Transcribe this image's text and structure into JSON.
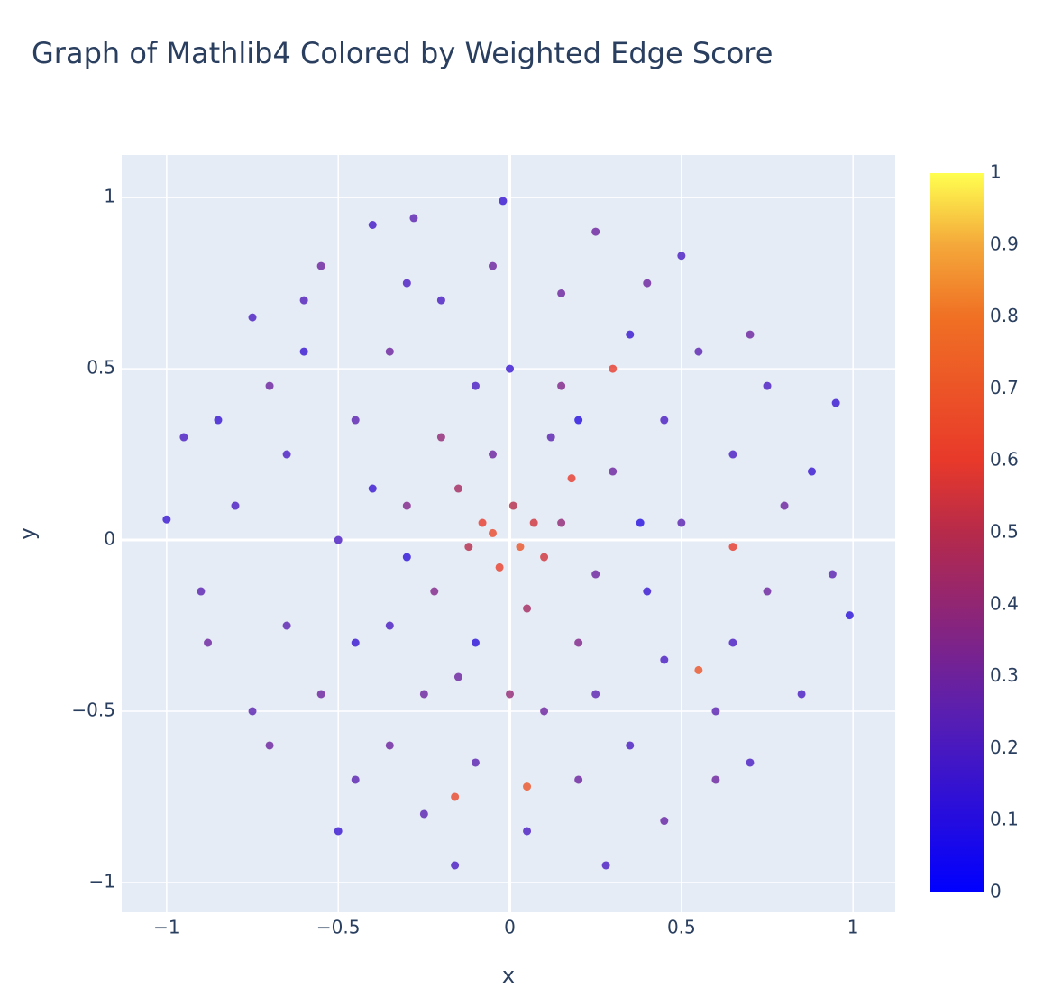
{
  "chart_data": {
    "type": "scatter",
    "title": "Graph of Mathlib4 Colored by Weighted Edge Score",
    "x_label": "x",
    "y_label": "y",
    "xlim": [
      -1.131,
      1.123
    ],
    "ylim": [
      -1.087,
      1.124
    ],
    "xticks": [
      {
        "value": -1,
        "label": "−1"
      },
      {
        "value": -0.5,
        "label": "−0.5"
      },
      0,
      0.5,
      1
    ],
    "yticks": [
      {
        "value": -1,
        "label": "−1"
      },
      {
        "value": -0.5,
        "label": "−0.5"
      },
      0,
      0.5,
      1
    ],
    "grid": true,
    "colorscale": [
      [
        0,
        "#0000ff"
      ],
      [
        0.25,
        "#5a1fb0"
      ],
      [
        0.5,
        "#b62a4a"
      ],
      [
        0.6,
        "#e8392a"
      ],
      [
        0.8,
        "#f07024"
      ],
      [
        0.9,
        "#f4a83a"
      ],
      [
        1,
        "#ffff50"
      ]
    ],
    "clim": [
      0,
      1
    ],
    "cticks": [
      0,
      0.1,
      0.2,
      0.3,
      0.4,
      0.5,
      0.6,
      0.7,
      0.8,
      0.9,
      1
    ],
    "x": [
      -0.02,
      -1.0,
      0.99,
      -0.16,
      0.28,
      -0.4,
      -0.28,
      0.25,
      0.95,
      -0.95,
      0.94,
      -0.88,
      0.85,
      -0.75,
      0.7,
      -0.6,
      0.5,
      -0.55,
      -0.5,
      0.45,
      -0.05,
      0.03,
      -0.08,
      0.07,
      0.01,
      -0.03,
      0.1,
      -0.12,
      0.18,
      0.3,
      0.55,
      -0.16,
      0.05,
      0.65,
      -0.3,
      0.3,
      -0.2,
      0.2,
      -0.35,
      0.4,
      -0.45,
      0.45,
      -0.25,
      0.25,
      -0.1,
      0.1,
      -0.5,
      0.5,
      0.0,
      0.0,
      -0.65,
      0.65,
      -0.65,
      0.65,
      -0.35,
      0.35,
      -0.35,
      0.35,
      -0.8,
      0.8,
      -0.15,
      0.15,
      -0.05,
      0.05,
      -0.22,
      0.25,
      -0.4,
      0.38,
      -0.3,
      0.2,
      -0.1,
      0.12,
      -0.55,
      0.6,
      -0.7,
      0.75,
      -0.2,
      0.15,
      -0.1,
      0.2,
      -0.85,
      0.88,
      -0.9,
      0.75,
      -0.45,
      0.4,
      -0.6,
      0.55,
      -0.3,
      -0.05,
      0.05,
      -0.25,
      0.6,
      -0.7,
      0.7,
      -0.75,
      0.15,
      -0.15,
      0.45,
      -0.45
    ],
    "y": [
      0.99,
      0.06,
      -0.22,
      -0.95,
      -0.95,
      0.92,
      0.94,
      0.9,
      0.4,
      0.3,
      -0.1,
      -0.3,
      -0.45,
      -0.5,
      0.6,
      0.7,
      0.83,
      0.8,
      -0.85,
      -0.82,
      0.02,
      -0.02,
      0.05,
      0.05,
      0.1,
      -0.08,
      -0.05,
      -0.02,
      0.18,
      0.5,
      -0.38,
      -0.75,
      -0.72,
      -0.02,
      0.1,
      0.2,
      0.3,
      -0.3,
      -0.25,
      -0.15,
      0.35,
      0.35,
      -0.45,
      -0.45,
      0.45,
      -0.5,
      0.0,
      0.05,
      0.5,
      -0.45,
      0.25,
      0.25,
      -0.25,
      -0.3,
      0.55,
      0.6,
      -0.6,
      -0.6,
      0.1,
      0.1,
      0.15,
      0.05,
      0.25,
      -0.2,
      -0.15,
      -0.1,
      0.15,
      0.05,
      -0.05,
      0.35,
      -0.3,
      0.3,
      -0.45,
      -0.5,
      0.45,
      -0.15,
      0.7,
      0.72,
      -0.65,
      -0.7,
      0.35,
      0.2,
      -0.15,
      0.45,
      -0.7,
      0.75,
      0.55,
      0.55,
      0.75,
      0.8,
      -0.85,
      -0.8,
      -0.7,
      -0.6,
      -0.65,
      0.65,
      0.45,
      -0.4,
      -0.35,
      -0.3
    ],
    "color": [
      0.15,
      0.15,
      0.12,
      0.2,
      0.2,
      0.18,
      0.25,
      0.3,
      0.15,
      0.2,
      0.25,
      0.3,
      0.2,
      0.25,
      0.3,
      0.22,
      0.2,
      0.3,
      0.15,
      0.28,
      0.65,
      0.7,
      0.6,
      0.55,
      0.5,
      0.62,
      0.55,
      0.5,
      0.6,
      0.6,
      0.7,
      0.65,
      0.7,
      0.6,
      0.35,
      0.3,
      0.4,
      0.35,
      0.2,
      0.15,
      0.25,
      0.2,
      0.3,
      0.25,
      0.2,
      0.3,
      0.2,
      0.25,
      0.15,
      0.4,
      0.2,
      0.2,
      0.25,
      0.2,
      0.3,
      0.15,
      0.3,
      0.2,
      0.2,
      0.3,
      0.45,
      0.4,
      0.3,
      0.45,
      0.35,
      0.3,
      0.15,
      0.1,
      0.12,
      0.1,
      0.12,
      0.25,
      0.3,
      0.25,
      0.3,
      0.3,
      0.2,
      0.3,
      0.25,
      0.3,
      0.15,
      0.15,
      0.25,
      0.2,
      0.25,
      0.3,
      0.15,
      0.25,
      0.2,
      0.3,
      0.2,
      0.25,
      0.3,
      0.3,
      0.2,
      0.2,
      0.35,
      0.3,
      0.2,
      0.15
    ]
  }
}
